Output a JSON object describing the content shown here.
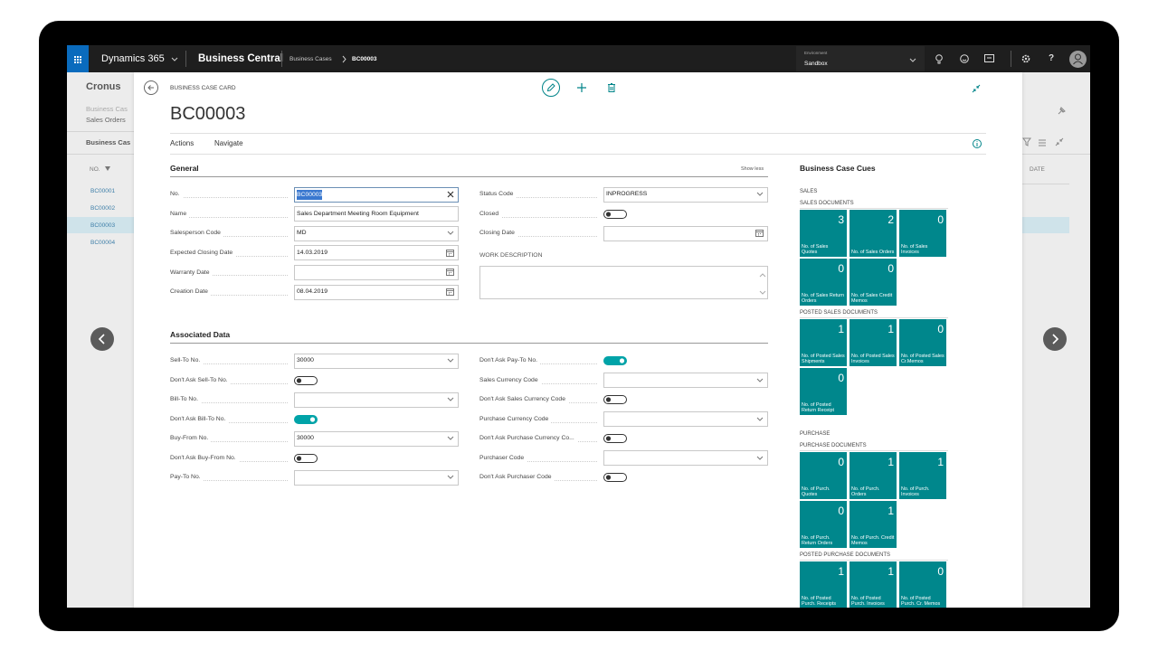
{
  "topbar": {
    "app": "Dynamics 365",
    "product": "Business Central",
    "breadcrumb": [
      "Business Cases",
      "BC00003"
    ],
    "environment_label": "Environment",
    "environment": "Sandbox",
    "help": "?"
  },
  "background": {
    "app_title": "Cronus",
    "nav": [
      "Business Cas",
      "Sales Orders"
    ],
    "list_title": "Business Cas",
    "columns": [
      "NO.",
      "DATE"
    ],
    "rows": [
      "BC00001",
      "BC00002",
      "BC00003",
      "BC00004"
    ],
    "selected_row": 2
  },
  "card": {
    "caption": "BUSINESS CASE CARD",
    "title": "BC00003",
    "menu": [
      "Actions",
      "Navigate"
    ],
    "sections": [
      {
        "title": "General",
        "toggle_text": "Show less",
        "left": [
          {
            "label": "No.",
            "value": "BC00003",
            "kind": "text",
            "selected": true
          },
          {
            "label": "Name",
            "value": "Sales Department Meeting Room Equipment",
            "kind": "text"
          },
          {
            "label": "Salesperson Code",
            "value": "MD",
            "kind": "dropdown"
          },
          {
            "label": "Expected Closing Date",
            "value": "14.03.2019",
            "kind": "date"
          },
          {
            "label": "Warranty Date",
            "kind": "date"
          },
          {
            "label": "Creation Date",
            "value": "08.04.2019",
            "kind": "date"
          }
        ],
        "right": [
          {
            "label": "Status Code",
            "value": "INPROGRESS",
            "kind": "dropdown"
          },
          {
            "label": "Closed",
            "kind": "toggle",
            "on": false
          },
          {
            "label": "Closing Date",
            "kind": "date"
          },
          {
            "label": "WORK DESCRIPTION",
            "kind": "textarea"
          }
        ]
      },
      {
        "title": "Associated Data",
        "left": [
          {
            "label": "Sell-To No.",
            "value": "30000",
            "kind": "dropdown"
          },
          {
            "label": "Don't Ask Sell-To No.",
            "kind": "toggle",
            "on": false
          },
          {
            "label": "Bill-To No.",
            "kind": "dropdown"
          },
          {
            "label": "Don't Ask Bill-To No.",
            "kind": "toggle",
            "on": true
          },
          {
            "label": "Buy-From No.",
            "value": "30000",
            "kind": "dropdown"
          },
          {
            "label": "Don't Ask Buy-From No.",
            "kind": "toggle",
            "on": false
          },
          {
            "label": "Pay-To No.",
            "kind": "dropdown"
          }
        ],
        "right": [
          {
            "label": "Don't Ask Pay-To No.",
            "kind": "toggle",
            "on": true
          },
          {
            "label": "Sales Currency Code",
            "kind": "dropdown"
          },
          {
            "label": "Don't Ask Sales Currency Code",
            "kind": "toggle",
            "on": false
          },
          {
            "label": "Purchase Currency Code",
            "kind": "dropdown"
          },
          {
            "label": "Don't Ask Purchase Currency Co...",
            "kind": "toggle",
            "on": false
          },
          {
            "label": "Purchaser Code",
            "kind": "dropdown"
          },
          {
            "label": "Don't Ask Purchaser Code",
            "kind": "toggle",
            "on": false
          }
        ]
      }
    ],
    "cues": {
      "title": "Business Case Cues",
      "groups": [
        {
          "heading": "SALES",
          "subgroups": [
            {
              "heading": "SALES DOCUMENTS",
              "tiles": [
                {
                  "value": 3,
                  "label": "No. of Sales Quotes"
                },
                {
                  "value": 2,
                  "label": "No. of Sales Orders"
                },
                {
                  "value": 0,
                  "label": "No. of Sales Invoices"
                },
                {
                  "value": 0,
                  "label": "No. of Sales Return Orders"
                },
                {
                  "value": 0,
                  "label": "No. of Sales Credit Memos"
                }
              ]
            },
            {
              "heading": "POSTED SALES DOCUMENTS",
              "tiles": [
                {
                  "value": 1,
                  "label": "No. of Posted Sales Shipments"
                },
                {
                  "value": 1,
                  "label": "No. of Posted Sales Invoices"
                },
                {
                  "value": 0,
                  "label": "No. of Posted Sales Cr.Memos"
                },
                {
                  "value": 0,
                  "label": "No. of Posted Return Receipt"
                }
              ]
            }
          ]
        },
        {
          "heading": "PURCHASE",
          "subgroups": [
            {
              "heading": "PURCHASE DOCUMENTS",
              "tiles": [
                {
                  "value": 0,
                  "label": "No. of Purch. Quotes"
                },
                {
                  "value": 1,
                  "label": "No. of Purch. Orders"
                },
                {
                  "value": 1,
                  "label": "No. of Purch. Invoices"
                },
                {
                  "value": 0,
                  "label": "No. of Purch. Return Orders"
                },
                {
                  "value": 1,
                  "label": "No. of Purch. Credit Memos"
                }
              ]
            },
            {
              "heading": "POSTED PURCHASE DOCUMENTS",
              "tiles": [
                {
                  "value": 1,
                  "label": "No. of Posted Purch. Receipts"
                },
                {
                  "value": 1,
                  "label": "No. of Posted Purch. Invoices"
                },
                {
                  "value": 0,
                  "label": "No. of Posted Purch. Cr. Memos"
                }
              ]
            }
          ]
        }
      ]
    }
  }
}
